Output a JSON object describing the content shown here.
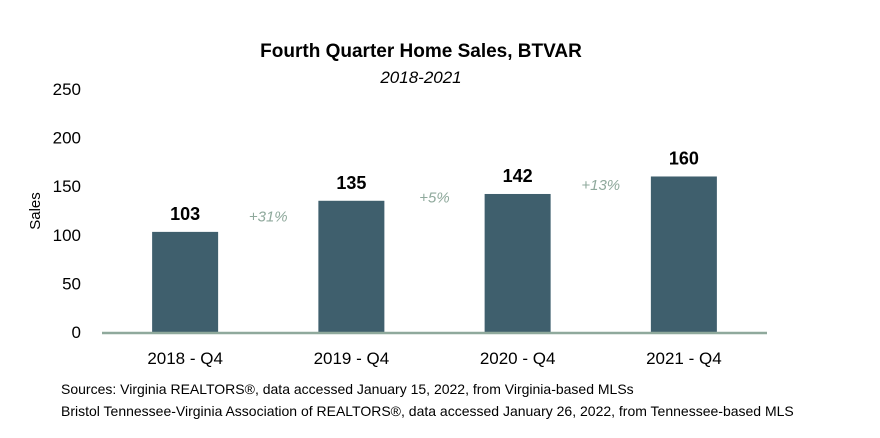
{
  "chart_data": {
    "type": "bar",
    "title": "Fourth Quarter Home Sales, BTVAR",
    "subtitle": "2018-2021",
    "ylabel": "Sales",
    "xlabel": "",
    "categories": [
      "2018 - Q4",
      "2019 - Q4",
      "2020 - Q4",
      "2021 - Q4"
    ],
    "values": [
      103,
      135,
      142,
      160
    ],
    "data_labels": [
      "103",
      "135",
      "142",
      "160"
    ],
    "yticks": [
      0,
      50,
      100,
      150,
      200,
      250
    ],
    "ylim": [
      0,
      250
    ],
    "changes": [
      "+31%",
      "+5%",
      "+13%"
    ],
    "grid": false,
    "legend": "none",
    "bar_color": "#3f5f6d",
    "axis_color": "#8fa99c",
    "change_color": "#8fa99c"
  },
  "sources": [
    "Sources: Virginia REALTORS®, data accessed January 15, 2022, from Virginia-based MLSs",
    "Bristol Tennessee-Virginia Association of REALTORS®, data accessed January 26, 2022, from Tennessee-based MLS"
  ]
}
